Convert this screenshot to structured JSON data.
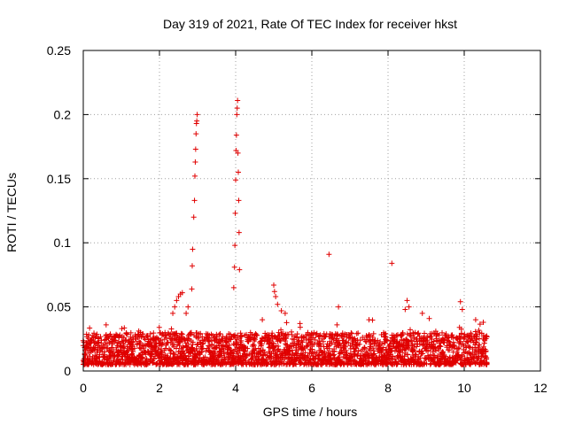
{
  "chart_data": {
    "type": "scatter",
    "title": "Day 319 of 2021, Rate Of TEC Index for receiver hkst",
    "xlabel": "GPS time / hours",
    "ylabel": "ROTI / TECUs",
    "xlim": [
      0,
      12
    ],
    "ylim": [
      0,
      0.25
    ],
    "x_ticks": [
      "0",
      "2",
      "4",
      "6",
      "8",
      "10",
      "12"
    ],
    "y_ticks": [
      "0",
      "0.05",
      "0.1",
      "0.15",
      "0.2",
      "0.25"
    ],
    "grid": true,
    "marker": "+",
    "color": "#e00000",
    "series": [
      {
        "name": "ROTI",
        "note": "dense band of points between 0.005 and ~0.03 TECU/s from 0 to 10.6 h; listed points are the visible outliers/spikes",
        "points": [
          [
            2.35,
            0.045
          ],
          [
            2.4,
            0.05
          ],
          [
            2.45,
            0.055
          ],
          [
            2.5,
            0.058
          ],
          [
            2.55,
            0.06
          ],
          [
            2.6,
            0.061
          ],
          [
            2.7,
            0.045
          ],
          [
            2.75,
            0.05
          ],
          [
            2.85,
            0.064
          ],
          [
            2.86,
            0.082
          ],
          [
            2.87,
            0.095
          ],
          [
            2.9,
            0.12
          ],
          [
            2.92,
            0.133
          ],
          [
            2.93,
            0.152
          ],
          [
            2.94,
            0.163
          ],
          [
            2.95,
            0.173
          ],
          [
            2.96,
            0.185
          ],
          [
            2.97,
            0.193
          ],
          [
            2.98,
            0.195
          ],
          [
            2.99,
            0.2
          ],
          [
            3.95,
            0.065
          ],
          [
            3.97,
            0.081
          ],
          [
            3.98,
            0.098
          ],
          [
            3.99,
            0.123
          ],
          [
            4.0,
            0.149
          ],
          [
            4.01,
            0.172
          ],
          [
            4.02,
            0.184
          ],
          [
            4.03,
            0.2
          ],
          [
            4.04,
            0.205
          ],
          [
            4.05,
            0.211
          ],
          [
            4.06,
            0.17
          ],
          [
            4.07,
            0.155
          ],
          [
            4.08,
            0.133
          ],
          [
            4.09,
            0.108
          ],
          [
            4.1,
            0.079
          ],
          [
            5.0,
            0.067
          ],
          [
            5.02,
            0.062
          ],
          [
            5.05,
            0.058
          ],
          [
            5.1,
            0.052
          ],
          [
            5.2,
            0.047
          ],
          [
            6.45,
            0.091
          ],
          [
            8.1,
            0.084
          ],
          [
            8.5,
            0.055
          ],
          [
            8.55,
            0.05
          ],
          [
            8.45,
            0.048
          ],
          [
            9.9,
            0.054
          ],
          [
            9.95,
            0.048
          ],
          [
            0.6,
            0.036
          ],
          [
            1.5,
            0.03
          ],
          [
            4.7,
            0.04
          ],
          [
            5.3,
            0.045
          ],
          [
            6.7,
            0.05
          ],
          [
            7.5,
            0.04
          ],
          [
            8.9,
            0.045
          ],
          [
            10.3,
            0.04
          ],
          [
            10.5,
            0.038
          ]
        ],
        "band": {
          "x_start": 0.0,
          "x_end": 10.6,
          "y_low": 0.005,
          "y_high": 0.03
        }
      }
    ]
  }
}
